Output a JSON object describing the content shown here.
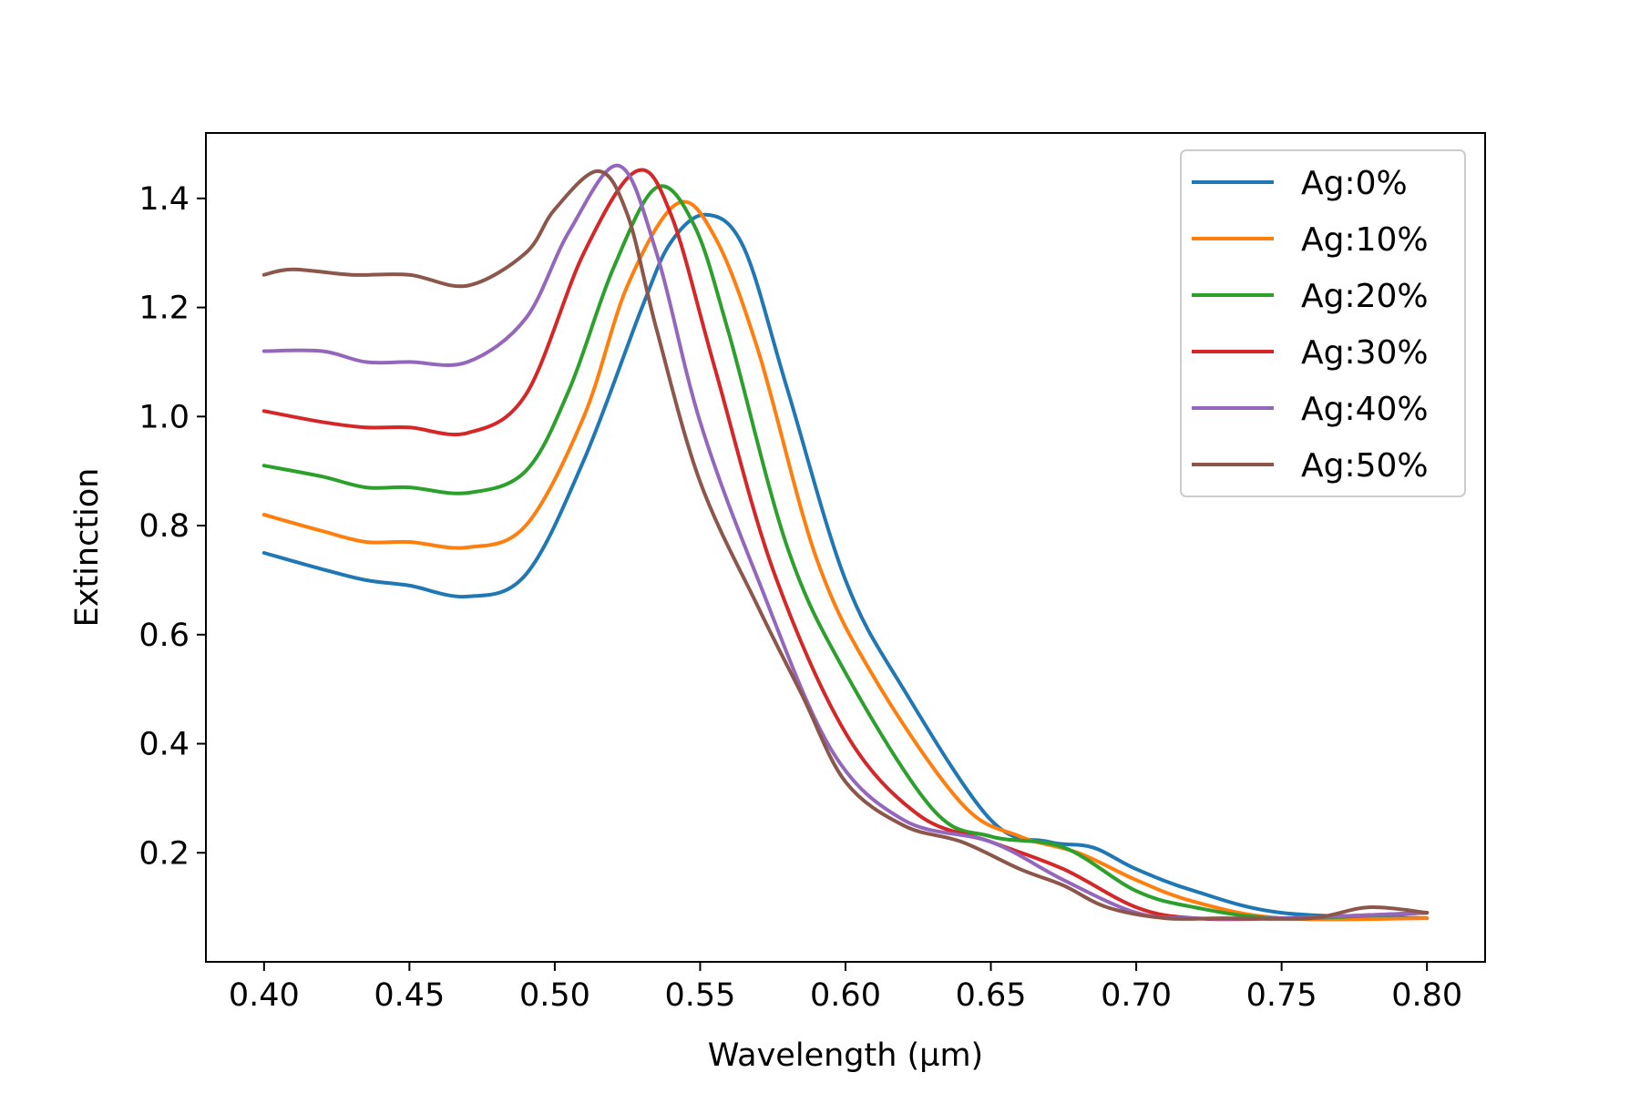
{
  "chart_data": {
    "type": "line",
    "title": "",
    "xlabel": "Wavelength (µm)",
    "ylabel": "Extinction",
    "xlim": [
      0.38,
      0.82
    ],
    "ylim": [
      0.0,
      1.52
    ],
    "xticks": [
      0.4,
      0.45,
      0.5,
      0.55,
      0.6,
      0.65,
      0.7,
      0.75,
      0.8
    ],
    "xtick_labels": [
      "0.40",
      "0.45",
      "0.50",
      "0.55",
      "0.60",
      "0.65",
      "0.70",
      "0.75",
      "0.80"
    ],
    "yticks": [
      0.2,
      0.4,
      0.6,
      0.8,
      1.0,
      1.2,
      1.4
    ],
    "ytick_labels": [
      "0.2",
      "0.4",
      "0.6",
      "0.8",
      "1.0",
      "1.2",
      "1.4"
    ],
    "grid": false,
    "legend_position": "top-right",
    "series": [
      {
        "name": "Ag:0%",
        "color": "#1f77b4",
        "x": [
          0.4,
          0.42,
          0.435,
          0.45,
          0.47,
          0.49,
          0.51,
          0.53,
          0.54,
          0.552,
          0.565,
          0.58,
          0.6,
          0.62,
          0.65,
          0.67,
          0.685,
          0.7,
          0.72,
          0.75,
          0.8
        ],
        "y": [
          0.75,
          0.72,
          0.7,
          0.69,
          0.67,
          0.71,
          0.92,
          1.2,
          1.32,
          1.37,
          1.31,
          1.05,
          0.7,
          0.5,
          0.26,
          0.22,
          0.21,
          0.17,
          0.13,
          0.09,
          0.08
        ]
      },
      {
        "name": "Ag:10%",
        "color": "#ff7f0e",
        "x": [
          0.4,
          0.42,
          0.435,
          0.45,
          0.47,
          0.49,
          0.51,
          0.525,
          0.542,
          0.555,
          0.57,
          0.59,
          0.61,
          0.64,
          0.66,
          0.68,
          0.7,
          0.72,
          0.75,
          0.8
        ],
        "y": [
          0.82,
          0.79,
          0.77,
          0.77,
          0.76,
          0.8,
          1.0,
          1.24,
          1.39,
          1.33,
          1.12,
          0.74,
          0.52,
          0.29,
          0.23,
          0.2,
          0.15,
          0.11,
          0.08,
          0.08
        ]
      },
      {
        "name": "Ag:20%",
        "color": "#2ca02c",
        "x": [
          0.4,
          0.42,
          0.435,
          0.45,
          0.47,
          0.49,
          0.505,
          0.52,
          0.535,
          0.548,
          0.56,
          0.58,
          0.6,
          0.63,
          0.65,
          0.675,
          0.7,
          0.72,
          0.75,
          0.8
        ],
        "y": [
          0.91,
          0.89,
          0.87,
          0.87,
          0.86,
          0.9,
          1.05,
          1.27,
          1.42,
          1.35,
          1.15,
          0.76,
          0.53,
          0.28,
          0.23,
          0.21,
          0.13,
          0.1,
          0.08,
          0.09
        ]
      },
      {
        "name": "Ag:30%",
        "color": "#d62728",
        "x": [
          0.4,
          0.42,
          0.435,
          0.45,
          0.47,
          0.49,
          0.51,
          0.528,
          0.54,
          0.555,
          0.575,
          0.6,
          0.625,
          0.65,
          0.675,
          0.7,
          0.72,
          0.75,
          0.8
        ],
        "y": [
          1.01,
          0.99,
          0.98,
          0.98,
          0.97,
          1.04,
          1.3,
          1.45,
          1.37,
          1.09,
          0.72,
          0.42,
          0.27,
          0.22,
          0.17,
          0.1,
          0.08,
          0.08,
          0.09
        ]
      },
      {
        "name": "Ag:40%",
        "color": "#9467bd",
        "x": [
          0.4,
          0.42,
          0.435,
          0.45,
          0.47,
          0.49,
          0.505,
          0.522,
          0.535,
          0.55,
          0.57,
          0.595,
          0.62,
          0.65,
          0.675,
          0.7,
          0.72,
          0.75,
          0.8
        ],
        "y": [
          1.12,
          1.12,
          1.1,
          1.1,
          1.1,
          1.18,
          1.34,
          1.46,
          1.3,
          0.99,
          0.7,
          0.39,
          0.26,
          0.22,
          0.15,
          0.09,
          0.08,
          0.08,
          0.09
        ]
      },
      {
        "name": "Ag:50%",
        "color": "#8c564b",
        "x": [
          0.4,
          0.41,
          0.43,
          0.45,
          0.47,
          0.49,
          0.5,
          0.515,
          0.525,
          0.535,
          0.55,
          0.57,
          0.585,
          0.6,
          0.62,
          0.64,
          0.66,
          0.675,
          0.69,
          0.71,
          0.73,
          0.76,
          0.78,
          0.8
        ],
        "y": [
          1.26,
          1.27,
          1.26,
          1.26,
          1.24,
          1.3,
          1.38,
          1.45,
          1.37,
          1.16,
          0.88,
          0.65,
          0.49,
          0.33,
          0.25,
          0.22,
          0.17,
          0.14,
          0.1,
          0.08,
          0.08,
          0.08,
          0.1,
          0.09
        ]
      }
    ]
  }
}
